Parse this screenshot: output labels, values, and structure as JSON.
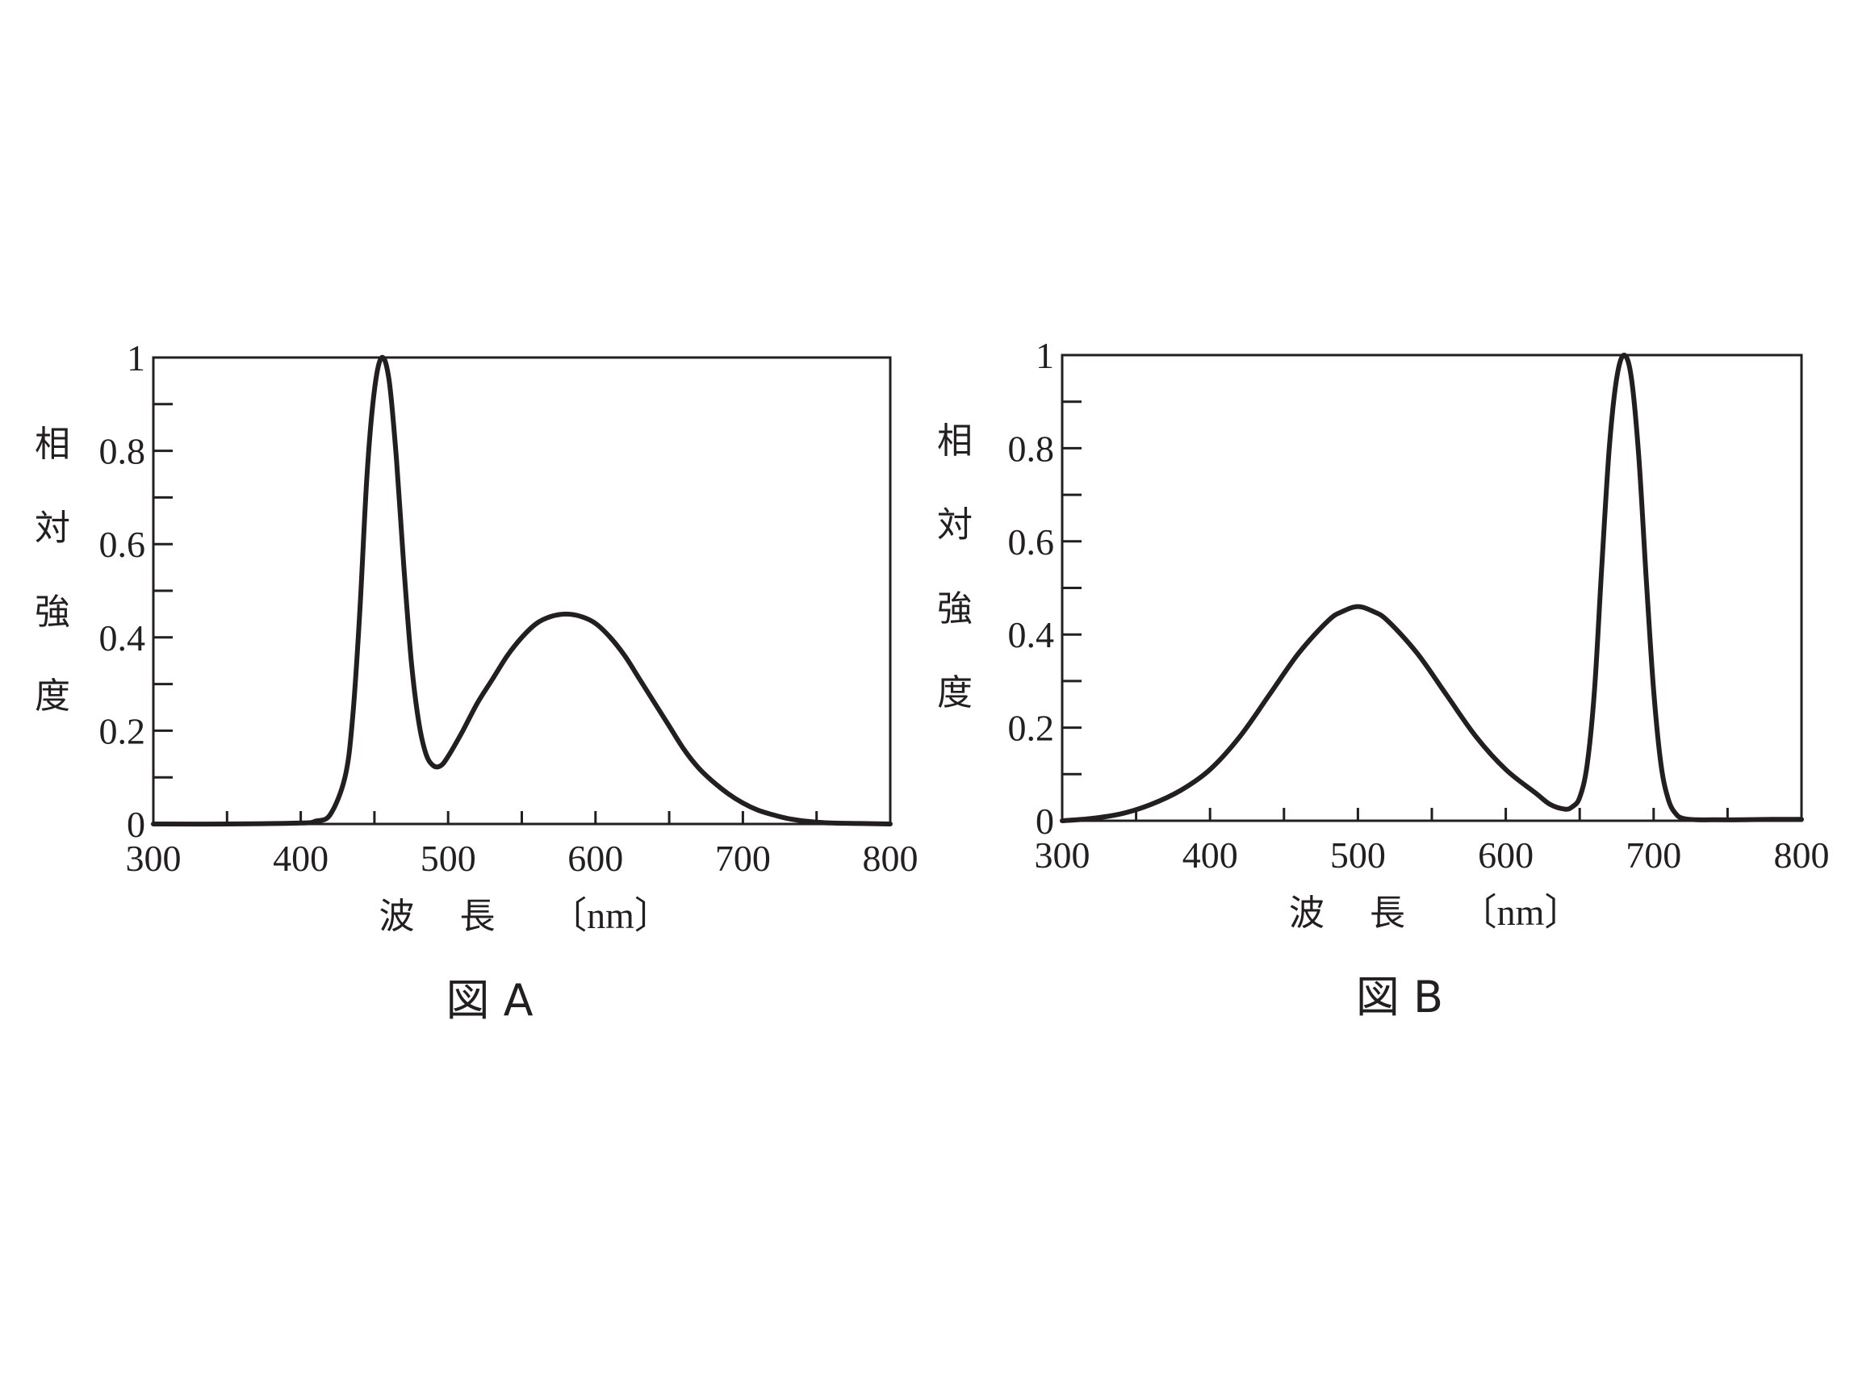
{
  "chart_data": [
    {
      "type": "line",
      "caption": "図 A",
      "ylabel": [
        "相",
        "対",
        "強",
        "度"
      ],
      "xlabel": {
        "quantity": "波",
        "quantity2": "長",
        "unit": "〔nm〕"
      },
      "xlim": [
        300,
        800
      ],
      "ylim": [
        0,
        1
      ],
      "xticks": [
        "300",
        "400",
        "500",
        "600",
        "700",
        "800"
      ],
      "yticks": [
        "0",
        "0.2",
        "0.4",
        "0.6",
        "0.8",
        "1"
      ],
      "x_minor_step": 50,
      "y_minor_step": 0.1,
      "grid": false,
      "series": [
        {
          "x": [
            300,
            350,
            400,
            410,
            420,
            430,
            435,
            440,
            445,
            450,
            455,
            460,
            465,
            470,
            475,
            480,
            485,
            490,
            495,
            500,
            510,
            520,
            530,
            540,
            550,
            560,
            570,
            580,
            590,
            600,
            610,
            620,
            630,
            640,
            650,
            660,
            670,
            680,
            690,
            700,
            710,
            720,
            730,
            740,
            750,
            760,
            780,
            800
          ],
          "y": [
            0,
            0,
            0.002,
            0.006,
            0.02,
            0.1,
            0.22,
            0.45,
            0.75,
            0.93,
            1.0,
            0.95,
            0.78,
            0.55,
            0.35,
            0.22,
            0.15,
            0.125,
            0.125,
            0.145,
            0.2,
            0.26,
            0.31,
            0.36,
            0.4,
            0.43,
            0.445,
            0.45,
            0.445,
            0.43,
            0.4,
            0.36,
            0.31,
            0.26,
            0.21,
            0.16,
            0.12,
            0.09,
            0.065,
            0.045,
            0.03,
            0.02,
            0.012,
            0.007,
            0.004,
            0.002,
            0.001,
            0
          ]
        }
      ]
    },
    {
      "type": "line",
      "caption": "図 B",
      "ylabel": [
        "相",
        "対",
        "強",
        "度"
      ],
      "xlabel": {
        "quantity": "波",
        "quantity2": "長",
        "unit": "〔nm〕"
      },
      "xlim": [
        300,
        800
      ],
      "ylim": [
        0,
        1
      ],
      "xticks": [
        "300",
        "400",
        "500",
        "600",
        "700",
        "800"
      ],
      "yticks": [
        "0",
        "0.2",
        "0.4",
        "0.6",
        "0.8",
        "1"
      ],
      "x_minor_step": 50,
      "y_minor_step": 0.1,
      "grid": false,
      "series": [
        {
          "x": [
            300,
            320,
            340,
            360,
            380,
            400,
            420,
            440,
            460,
            480,
            490,
            500,
            510,
            520,
            540,
            560,
            580,
            600,
            620,
            630,
            640,
            645,
            650,
            655,
            660,
            665,
            670,
            675,
            680,
            685,
            690,
            695,
            700,
            705,
            710,
            715,
            720,
            730,
            740,
            760,
            780,
            800
          ],
          "y": [
            0,
            0.005,
            0.015,
            0.035,
            0.065,
            0.11,
            0.18,
            0.27,
            0.36,
            0.43,
            0.45,
            0.46,
            0.45,
            0.43,
            0.36,
            0.27,
            0.18,
            0.11,
            0.06,
            0.035,
            0.025,
            0.03,
            0.05,
            0.12,
            0.28,
            0.55,
            0.8,
            0.95,
            1.0,
            0.95,
            0.78,
            0.52,
            0.28,
            0.12,
            0.045,
            0.015,
            0.005,
            0.002,
            0.002,
            0.002,
            0.003,
            0.003
          ]
        }
      ]
    }
  ]
}
